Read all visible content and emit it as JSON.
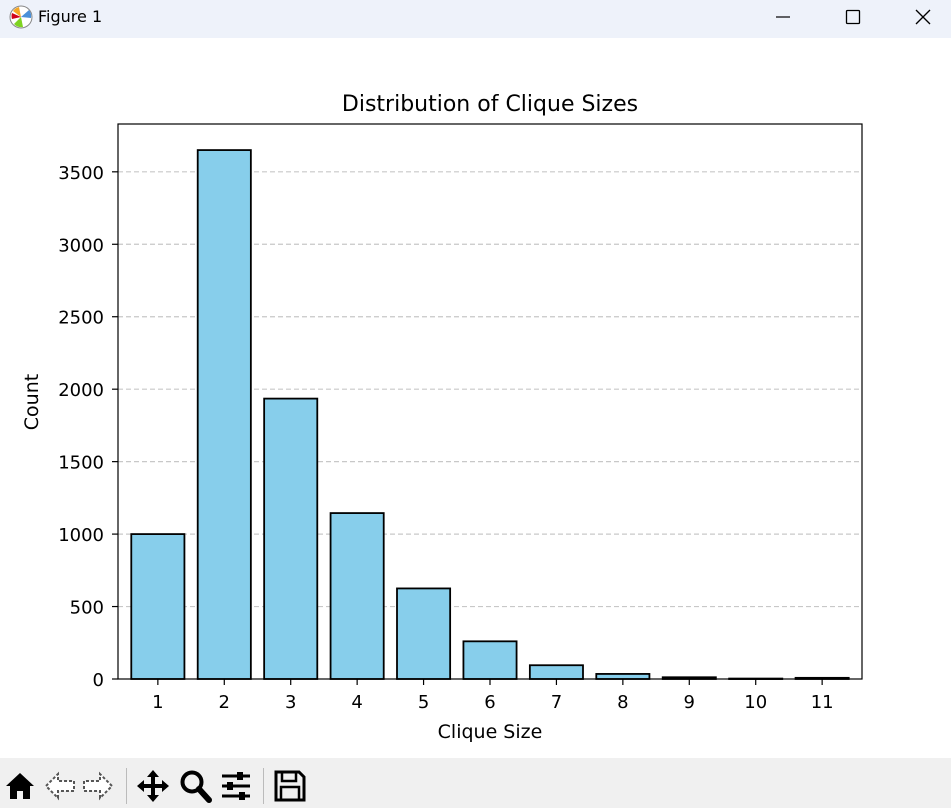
{
  "window": {
    "title": "Figure 1",
    "controls": [
      "minimize",
      "maximize",
      "close"
    ]
  },
  "toolbar": {
    "buttons": [
      "home-icon",
      "back-icon",
      "forward-icon",
      "pan-icon",
      "zoom-icon",
      "configure-subplots-icon",
      "save-icon"
    ]
  },
  "chart_data": {
    "type": "bar",
    "title": "Distribution of Clique Sizes",
    "xlabel": "Clique Size",
    "ylabel": "Count",
    "categories": [
      "1",
      "2",
      "3",
      "4",
      "5",
      "6",
      "7",
      "8",
      "9",
      "10",
      "11"
    ],
    "values": [
      1000,
      3650,
      1935,
      1145,
      625,
      260,
      95,
      35,
      12,
      3,
      8
    ],
    "ylim": [
      0,
      3830
    ],
    "yticks": [
      0,
      500,
      1000,
      1500,
      2000,
      2500,
      3000,
      3500
    ],
    "grid": "y-dashed",
    "colors": {
      "bar_fill": "#87ceeb",
      "bar_edge": "#000000",
      "grid": "#c8c8c8"
    }
  }
}
